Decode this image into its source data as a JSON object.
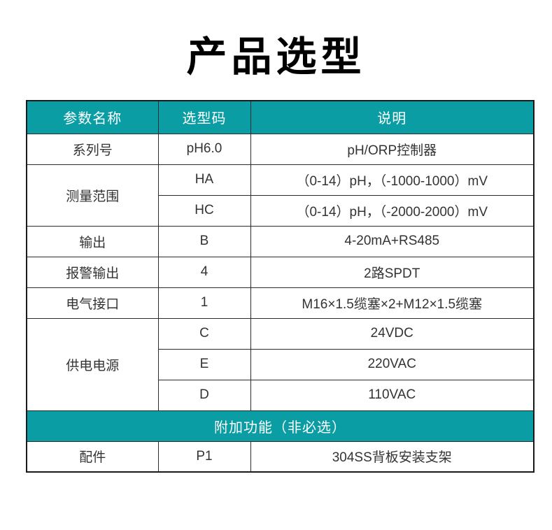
{
  "page": {
    "title": "产品选型"
  },
  "colors": {
    "accent_teal": "#0a9ea4",
    "border": "#2b2b2b",
    "body_text": "#333333",
    "header_text": "#ffffff",
    "title_text": "#000000"
  },
  "table": {
    "header": {
      "param": "参数名称",
      "code": "选型码",
      "desc": "说明"
    },
    "series": {
      "param": "系列号",
      "code": "pH6.0",
      "desc": "pH/ORP控制器"
    },
    "range": {
      "param": "测量范围",
      "rows": [
        {
          "code": "HA",
          "desc": "（0-14）pH，（-1000-1000）mV"
        },
        {
          "code": "HC",
          "desc": "（0-14）pH，（-2000-2000）mV"
        }
      ]
    },
    "output": {
      "param": "输出",
      "code": "B",
      "desc": "4-20mA+RS485"
    },
    "alarm": {
      "param": "报警输出",
      "code": "4",
      "desc": "2路SPDT"
    },
    "electrical": {
      "param": "电气接口",
      "code": "1",
      "desc": "M16×1.5缆塞×2+M12×1.5缆塞"
    },
    "power": {
      "param": "供电电源",
      "rows": [
        {
          "code": "C",
          "desc": "24VDC"
        },
        {
          "code": "E",
          "desc": "220VAC"
        },
        {
          "code": "D",
          "desc": "110VAC"
        }
      ]
    },
    "addon_section": {
      "label": "附加功能（非必选）"
    },
    "accessory": {
      "param": "配件",
      "code": "P1",
      "desc": "304SS背板安装支架"
    }
  }
}
